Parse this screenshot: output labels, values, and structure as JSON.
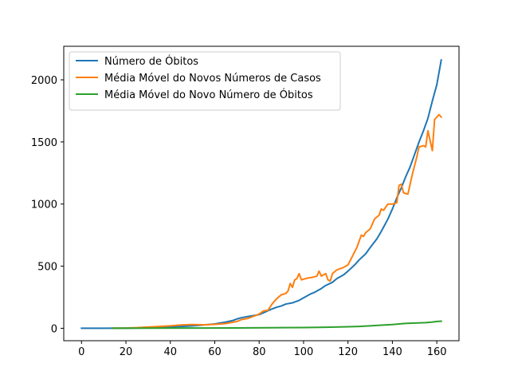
{
  "chart_data": {
    "type": "line",
    "title": "",
    "xlabel": "",
    "ylabel": "",
    "xlim": [
      -8,
      170
    ],
    "ylim": [
      -100,
      2270
    ],
    "xticks": [
      0,
      20,
      40,
      60,
      80,
      100,
      120,
      140,
      160
    ],
    "yticks": [
      0,
      500,
      1000,
      1500,
      2000
    ],
    "legend_position": "upper-left",
    "grid": false,
    "series": [
      {
        "name": "Número de Óbitos",
        "color": "#1f77b4",
        "points": [
          [
            0,
            0
          ],
          [
            10,
            0
          ],
          [
            20,
            1
          ],
          [
            25,
            2
          ],
          [
            30,
            4
          ],
          [
            35,
            7
          ],
          [
            40,
            11
          ],
          [
            45,
            15
          ],
          [
            50,
            20
          ],
          [
            55,
            27
          ],
          [
            60,
            35
          ],
          [
            65,
            50
          ],
          [
            68,
            62
          ],
          [
            70,
            75
          ],
          [
            72,
            85
          ],
          [
            75,
            95
          ],
          [
            80,
            110
          ],
          [
            82,
            125
          ],
          [
            85,
            150
          ],
          [
            88,
            170
          ],
          [
            90,
            180
          ],
          [
            92,
            195
          ],
          [
            95,
            205
          ],
          [
            98,
            225
          ],
          [
            100,
            245
          ],
          [
            103,
            275
          ],
          [
            105,
            290
          ],
          [
            108,
            320
          ],
          [
            110,
            345
          ],
          [
            113,
            370
          ],
          [
            115,
            400
          ],
          [
            118,
            430
          ],
          [
            120,
            460
          ],
          [
            123,
            510
          ],
          [
            125,
            550
          ],
          [
            128,
            600
          ],
          [
            130,
            650
          ],
          [
            133,
            720
          ],
          [
            135,
            780
          ],
          [
            138,
            880
          ],
          [
            140,
            960
          ],
          [
            142,
            1050
          ],
          [
            144,
            1130
          ],
          [
            146,
            1220
          ],
          [
            148,
            1300
          ],
          [
            150,
            1400
          ],
          [
            152,
            1500
          ],
          [
            154,
            1590
          ],
          [
            156,
            1690
          ],
          [
            158,
            1830
          ],
          [
            160,
            1960
          ],
          [
            162,
            2160
          ]
        ]
      },
      {
        "name": "Média Móvel do Novos Números de Casos",
        "color": "#ff7f0e",
        "points": [
          [
            14,
            1
          ],
          [
            20,
            2
          ],
          [
            25,
            5
          ],
          [
            30,
            10
          ],
          [
            35,
            15
          ],
          [
            40,
            20
          ],
          [
            45,
            27
          ],
          [
            50,
            30
          ],
          [
            55,
            28
          ],
          [
            60,
            32
          ],
          [
            65,
            38
          ],
          [
            70,
            55
          ],
          [
            72,
            70
          ],
          [
            75,
            80
          ],
          [
            78,
            100
          ],
          [
            80,
            115
          ],
          [
            82,
            140
          ],
          [
            84,
            145
          ],
          [
            86,
            200
          ],
          [
            88,
            240
          ],
          [
            90,
            270
          ],
          [
            92,
            280
          ],
          [
            93,
            300
          ],
          [
            94,
            360
          ],
          [
            95,
            330
          ],
          [
            96,
            390
          ],
          [
            97,
            400
          ],
          [
            98,
            440
          ],
          [
            99,
            390
          ],
          [
            100,
            395
          ],
          [
            102,
            405
          ],
          [
            104,
            410
          ],
          [
            106,
            420
          ],
          [
            107,
            460
          ],
          [
            108,
            420
          ],
          [
            110,
            440
          ],
          [
            111,
            390
          ],
          [
            112,
            380
          ],
          [
            113,
            440
          ],
          [
            115,
            470
          ],
          [
            118,
            490
          ],
          [
            120,
            510
          ],
          [
            122,
            580
          ],
          [
            124,
            650
          ],
          [
            126,
            750
          ],
          [
            127,
            740
          ],
          [
            128,
            770
          ],
          [
            130,
            800
          ],
          [
            132,
            880
          ],
          [
            134,
            910
          ],
          [
            135,
            960
          ],
          [
            136,
            950
          ],
          [
            138,
            1000
          ],
          [
            140,
            1000
          ],
          [
            142,
            1010
          ],
          [
            143,
            1150
          ],
          [
            144,
            1160
          ],
          [
            145,
            1090
          ],
          [
            147,
            1080
          ],
          [
            149,
            1240
          ],
          [
            151,
            1380
          ],
          [
            152,
            1460
          ],
          [
            154,
            1470
          ],
          [
            155,
            1460
          ],
          [
            156,
            1590
          ],
          [
            158,
            1430
          ],
          [
            159,
            1680
          ],
          [
            160,
            1700
          ],
          [
            161,
            1720
          ],
          [
            162,
            1700
          ]
        ]
      },
      {
        "name": "Média Móvel do Novo Número de Óbitos",
        "color": "#2ca02c",
        "points": [
          [
            14,
            0
          ],
          [
            30,
            1
          ],
          [
            50,
            2
          ],
          [
            70,
            3
          ],
          [
            90,
            5
          ],
          [
            100,
            6
          ],
          [
            110,
            8
          ],
          [
            120,
            12
          ],
          [
            125,
            15
          ],
          [
            130,
            20
          ],
          [
            135,
            25
          ],
          [
            140,
            30
          ],
          [
            145,
            38
          ],
          [
            150,
            42
          ],
          [
            155,
            45
          ],
          [
            158,
            50
          ],
          [
            160,
            55
          ],
          [
            162,
            57
          ]
        ]
      }
    ]
  }
}
